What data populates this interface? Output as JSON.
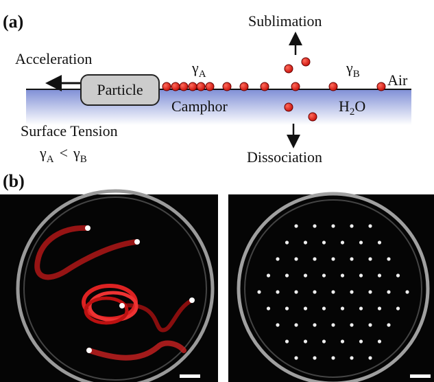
{
  "panel_a": {
    "label": "(a)",
    "sublimation": "Sublimation",
    "acceleration": "Acceleration",
    "gamma_a": {
      "symbol": "γ",
      "subscript": "A"
    },
    "gamma_b": {
      "symbol": "γ",
      "subscript": "B"
    },
    "air": "Air",
    "particle": "Particle",
    "camphor": "Camphor",
    "water": {
      "base": "H",
      "subscript": "2",
      "tail": "O"
    },
    "surface_tension": "Surface Tension",
    "inequality": {
      "left": "γ",
      "left_sub": "A",
      "relation": "<",
      "right": "γ",
      "right_sub": "B"
    },
    "dissociation": "Dissociation"
  },
  "panel_b": {
    "label": "(b)"
  }
}
